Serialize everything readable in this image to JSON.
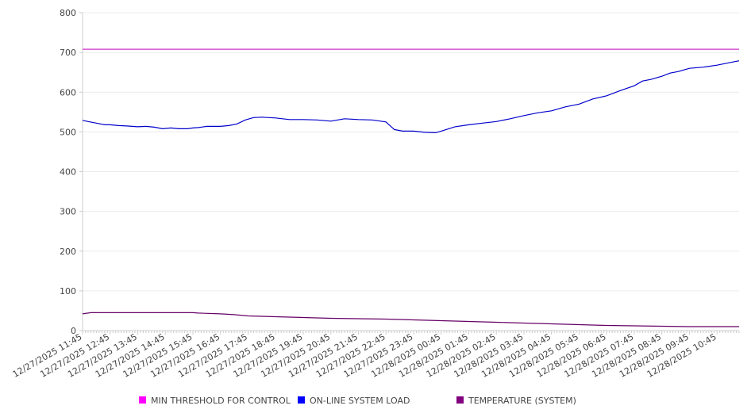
{
  "chart_data": {
    "type": "line",
    "title": "",
    "xlabel": "",
    "ylabel": "",
    "ylim": [
      0,
      800
    ],
    "yticks": [
      0,
      100,
      200,
      300,
      400,
      500,
      600,
      700,
      800
    ],
    "xlim_hours_from_start": [
      0,
      23.8
    ],
    "xtick_labels": [
      "12/27/2025 11:45",
      "12/27/2025 12:45",
      "12/27/2025 13:45",
      "12/27/2025 14:45",
      "12/27/2025 15:45",
      "12/27/2025 16:45",
      "12/27/2025 17:45",
      "12/27/2025 18:45",
      "12/27/2025 19:45",
      "12/27/2025 20:45",
      "12/27/2025 21:45",
      "12/27/2025 22:45",
      "12/27/2025 23:45",
      "12/28/2025 00:45",
      "12/28/2025 01:45",
      "12/28/2025 02:45",
      "12/28/2025 03:45",
      "12/28/2025 04:45",
      "12/28/2025 05:45",
      "12/28/2025 06:45",
      "12/28/2025 07:45",
      "12/28/2025 08:45",
      "12/28/2025 09:45",
      "12/28/2025 10:45"
    ],
    "grid": true,
    "legend_position": "bottom",
    "series": [
      {
        "name": "MIN THRESHOLD FOR CONTROL",
        "color": "#ff00ff",
        "line_color": "#cc33cc",
        "x": [
          0,
          23.8
        ],
        "values": [
          708,
          708
        ]
      },
      {
        "name": "ON-LINE SYSTEM LOAD",
        "color": "#0000ff",
        "line_color": "#0000cc",
        "x": [
          0,
          0.2,
          0.5,
          0.8,
          1,
          1.3,
          1.6,
          2,
          2.3,
          2.6,
          2.9,
          3.2,
          3.5,
          3.8,
          4,
          4.2,
          4.5,
          4.8,
          5,
          5.3,
          5.6,
          5.9,
          6.2,
          6.5,
          7,
          7.5,
          8,
          8.5,
          9,
          9.5,
          10,
          10.5,
          10.8,
          11,
          11.3,
          11.6,
          12,
          12.4,
          12.8,
          13,
          13.5,
          14,
          14.5,
          15,
          15.5,
          16,
          16.5,
          17,
          17.5,
          18,
          18.5,
          19,
          19.5,
          20,
          20.3,
          20.6,
          21,
          21.3,
          21.6,
          22,
          22.5,
          23,
          23.5,
          23.8
        ],
        "values": [
          529,
          526,
          522,
          518,
          518,
          516,
          515,
          513,
          514,
          512,
          508,
          510,
          508,
          508,
          510,
          511,
          514,
          514,
          514,
          516,
          520,
          530,
          536,
          537,
          535,
          531,
          531,
          530,
          527,
          533,
          531,
          530,
          527,
          525,
          506,
          502,
          502,
          499,
          498,
          502,
          513,
          518,
          522,
          526,
          533,
          541,
          548,
          553,
          563,
          570,
          583,
          591,
          604,
          616,
          628,
          632,
          640,
          648,
          652,
          660,
          663,
          668,
          675,
          679
        ]
      },
      {
        "name": "TEMPERATURE (SYSTEM)",
        "color": "#800080",
        "line_color": "#660066",
        "x": [
          0,
          0.3,
          1,
          2,
          3,
          4,
          4.2,
          5,
          5.5,
          6,
          7,
          8,
          9,
          10,
          11,
          12,
          13,
          14,
          15,
          16,
          17,
          18,
          19,
          20,
          21,
          22,
          23,
          23.8
        ],
        "values": [
          42,
          45,
          45,
          45,
          45,
          45,
          44,
          42,
          40,
          37,
          35,
          33,
          31,
          30,
          29,
          27,
          25,
          23,
          21,
          19,
          17,
          15,
          13,
          12,
          11,
          10,
          10,
          10
        ]
      }
    ]
  }
}
